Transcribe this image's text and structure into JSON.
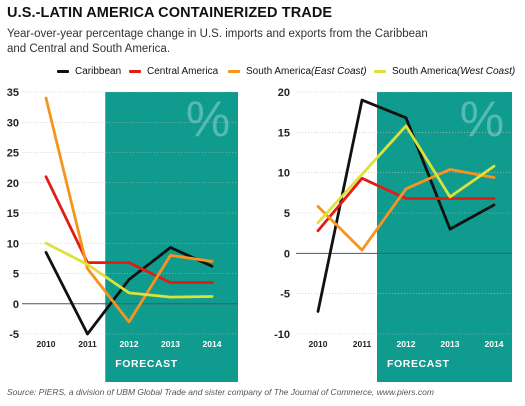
{
  "title": "U.S.-LATIN AMERICA CONTAINERIZED TRADE",
  "subtitle_line1": "Year-over-year percentage change in U.S. imports and exports from the Caribbean",
  "subtitle_line2": "and Central and South America.",
  "legend": [
    {
      "label": "Caribbean",
      "qualifier": "",
      "color": "#111111"
    },
    {
      "label": "Central America",
      "qualifier": "",
      "color": "#e41b13"
    },
    {
      "label": "South America ",
      "qualifier": "(East Coast)",
      "color": "#f7941d"
    },
    {
      "label": "South America ",
      "qualifier": "(West Coast)",
      "color": "#dbe23c"
    }
  ],
  "forecast_label": "FORECAST",
  "percent_symbol": "%",
  "colors": {
    "forecast_band": "#0f9b8e",
    "percent_watermark": "#53bbb1"
  },
  "source": "Source: PIERS, a division of UBM Global Trade and sister company of The Journal of Commerce, www.piers.com",
  "chart_data": [
    {
      "type": "line",
      "name": "imports",
      "x": [
        "2010",
        "2011",
        "2012",
        "2013",
        "2014"
      ],
      "ylim": [
        -5,
        35
      ],
      "yticks": [
        -5,
        0,
        5,
        10,
        15,
        20,
        25,
        30,
        35
      ],
      "forecast_from": "2012",
      "series": [
        {
          "name": "Caribbean",
          "values": [
            8.5,
            -5,
            4,
            9.3,
            6.2
          ]
        },
        {
          "name": "Central America",
          "values": [
            21,
            6.8,
            6.8,
            3.5,
            3.5
          ]
        },
        {
          "name": "South America (East Coast)",
          "values": [
            34,
            5.8,
            -3,
            8,
            7
          ]
        },
        {
          "name": "South America (West Coast)",
          "values": [
            10,
            6.5,
            1.8,
            1.1,
            1.2
          ]
        }
      ]
    },
    {
      "type": "line",
      "name": "exports",
      "x": [
        "2010",
        "2011",
        "2012",
        "2013",
        "2014"
      ],
      "ylim": [
        -10,
        20
      ],
      "yticks": [
        -10,
        -5,
        0,
        5,
        10,
        15,
        20
      ],
      "forecast_from": "2012",
      "series": [
        {
          "name": "Caribbean",
          "values": [
            -7.2,
            19,
            16.8,
            3,
            6
          ]
        },
        {
          "name": "Central America",
          "values": [
            2.8,
            9.3,
            6.8,
            6.8,
            6.8
          ]
        },
        {
          "name": "South America (East Coast)",
          "values": [
            5.8,
            0.4,
            8,
            10.4,
            9.4
          ]
        },
        {
          "name": "South America (West Coast)",
          "values": [
            3.8,
            9.8,
            15.8,
            7,
            10.8
          ]
        }
      ]
    }
  ]
}
